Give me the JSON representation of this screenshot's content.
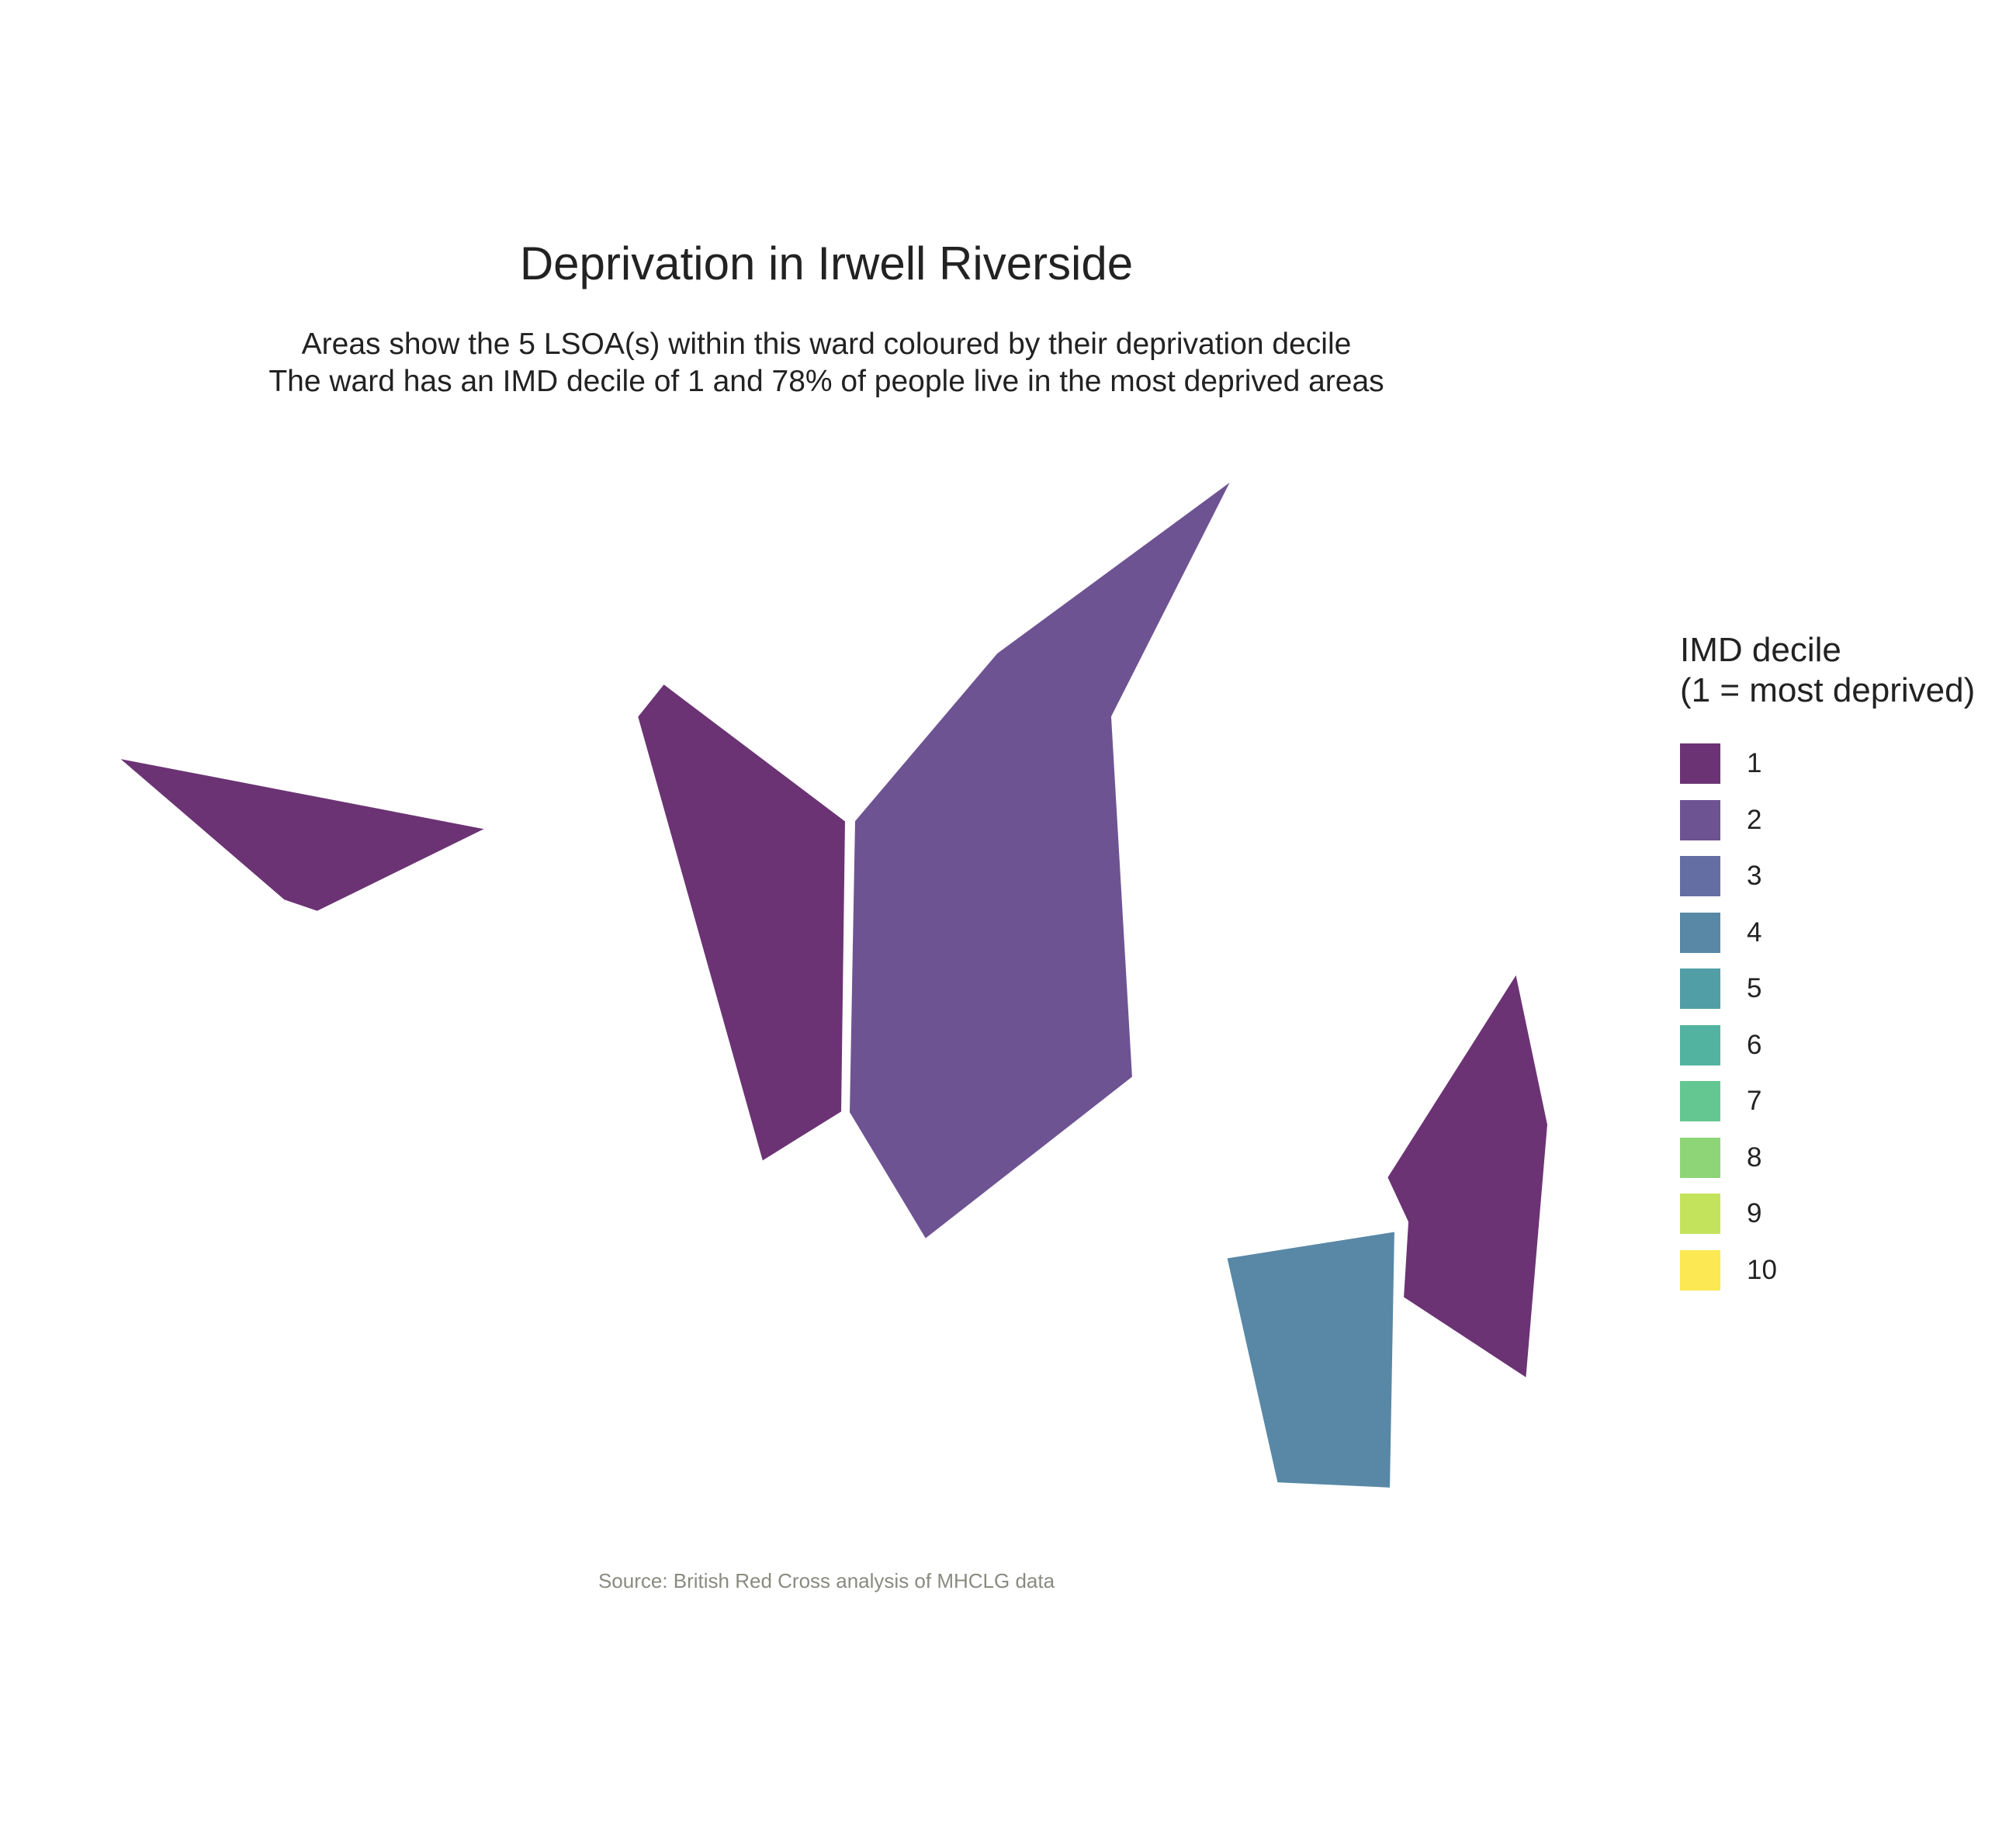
{
  "title": "Deprivation in Irwell Riverside",
  "subtitle_line1": "Areas show the 5 LSOA(s) within this ward coloured by their deprivation decile",
  "subtitle_line2": "The ward has an IMD decile of 1 and 78% of people live in the most deprived areas",
  "caption": "Source: British Red Cross analysis of MHCLG data",
  "legend": {
    "title_line1": "IMD decile",
    "title_line2": "(1 = most deprived)",
    "items": [
      {
        "label": "1",
        "color": "#6b3374"
      },
      {
        "label": "2",
        "color": "#6e5393"
      },
      {
        "label": "3",
        "color": "#656ea2"
      },
      {
        "label": "4",
        "color": "#5888a6"
      },
      {
        "label": "5",
        "color": "#529ea6"
      },
      {
        "label": "6",
        "color": "#52b4a0"
      },
      {
        "label": "7",
        "color": "#64c792"
      },
      {
        "label": "8",
        "color": "#8ed578"
      },
      {
        "label": "9",
        "color": "#c4e35c"
      },
      {
        "label": "10",
        "color": "#fbe853"
      }
    ]
  },
  "chart_data": {
    "type": "choropleth",
    "fill_variable": "IMD decile",
    "areas": [
      {
        "decile": 1
      },
      {
        "decile": 1
      },
      {
        "decile": 2
      },
      {
        "decile": 1
      },
      {
        "decile": 4
      }
    ]
  }
}
